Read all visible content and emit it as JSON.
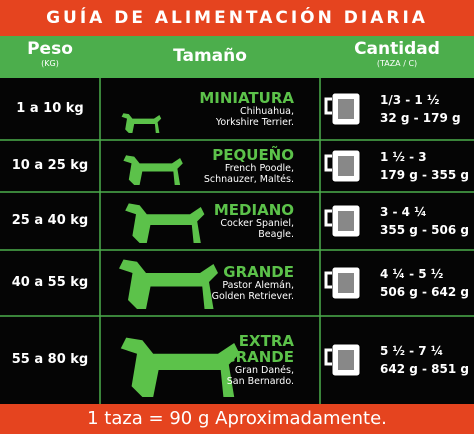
{
  "title": "GUÍA DE ALIMENTACIÓN DIARIA",
  "header": {
    "weight": "Peso",
    "weight_unit": "(KG)",
    "size": "Tamaño",
    "amount": "Cantidad",
    "amount_unit": "(TAZA / C)"
  },
  "rows": [
    {
      "weight": "1 a 10 kg",
      "size": [
        "MINIATURA"
      ],
      "breeds": [
        "Chihuahua,",
        "Yorkshire Terrier."
      ],
      "cups": "1/3 - 1 ½",
      "grams": "32 g - 179 g"
    },
    {
      "weight": "10 a 25 kg",
      "size": [
        "PEQUEÑO"
      ],
      "breeds": [
        "French Poodle,",
        "Schnauzer, Maltés."
      ],
      "cups": "1 ½ - 3",
      "grams": "179 g - 355 g"
    },
    {
      "weight": "25 a 40 kg",
      "size": [
        "MEDIANO"
      ],
      "breeds": [
        "Cocker Spaniel,",
        "Beagle."
      ],
      "cups": "3 - 4 ¼",
      "grams": "355 g - 506 g"
    },
    {
      "weight": "40 a 55 kg",
      "size": [
        "GRANDE"
      ],
      "breeds": [
        "Pastor Alemán,",
        "Golden Retriever."
      ],
      "cups": "4 ¼ - 5 ½",
      "grams": "506 g - 642 g"
    },
    {
      "weight": "55 a 80 kg",
      "size": [
        "EXTRA",
        "GRANDE"
      ],
      "breeds": [
        "Gran Danés,",
        "San Bernardo."
      ],
      "cups": "5 ½ - 7 ¼",
      "grams": "642 g - 851 g"
    }
  ],
  "footer": "1 taza = 90 g Aproximadamente."
}
